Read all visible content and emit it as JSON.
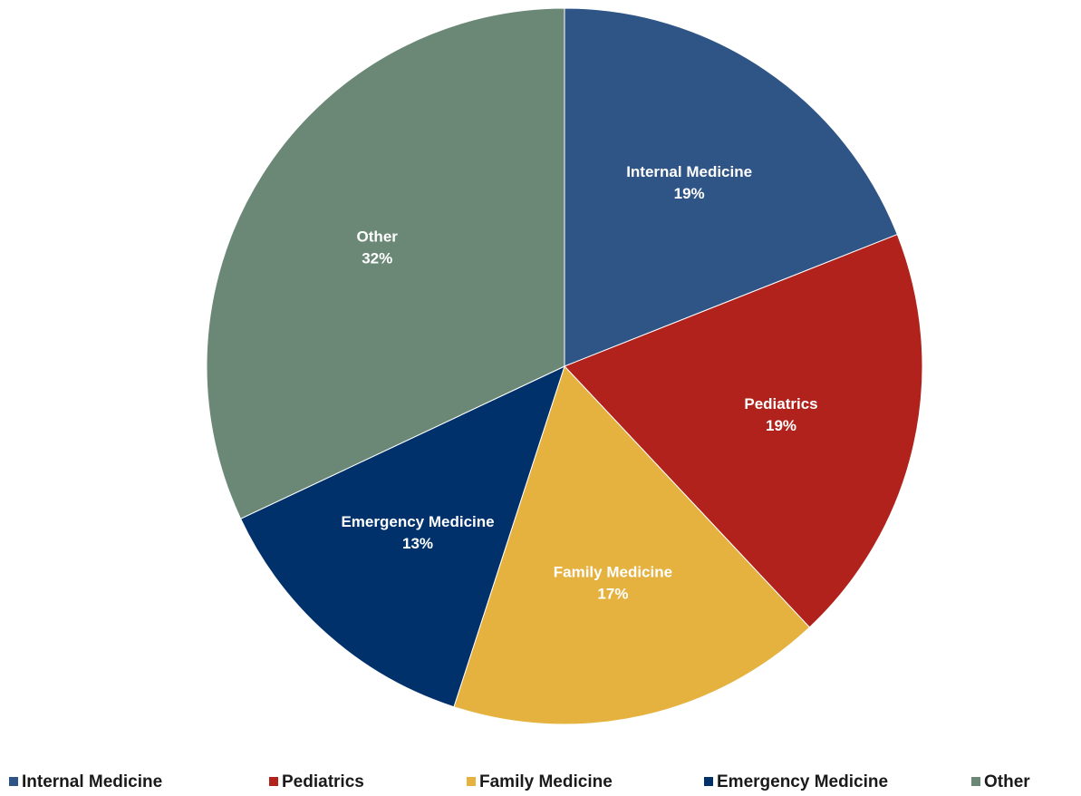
{
  "chart_data": {
    "type": "pie",
    "categories": [
      "Internal Medicine",
      "Pediatrics",
      "Family Medicine",
      "Emergency Medicine",
      "Other"
    ],
    "values": [
      19,
      19,
      17,
      13,
      32
    ],
    "value_labels": [
      "19%",
      "19%",
      "17%",
      "13%",
      "32%"
    ],
    "colors": [
      "#2f5486",
      "#b0221b",
      "#e5b13f",
      "#00316b",
      "#6b8877"
    ],
    "legend": "bottom"
  }
}
